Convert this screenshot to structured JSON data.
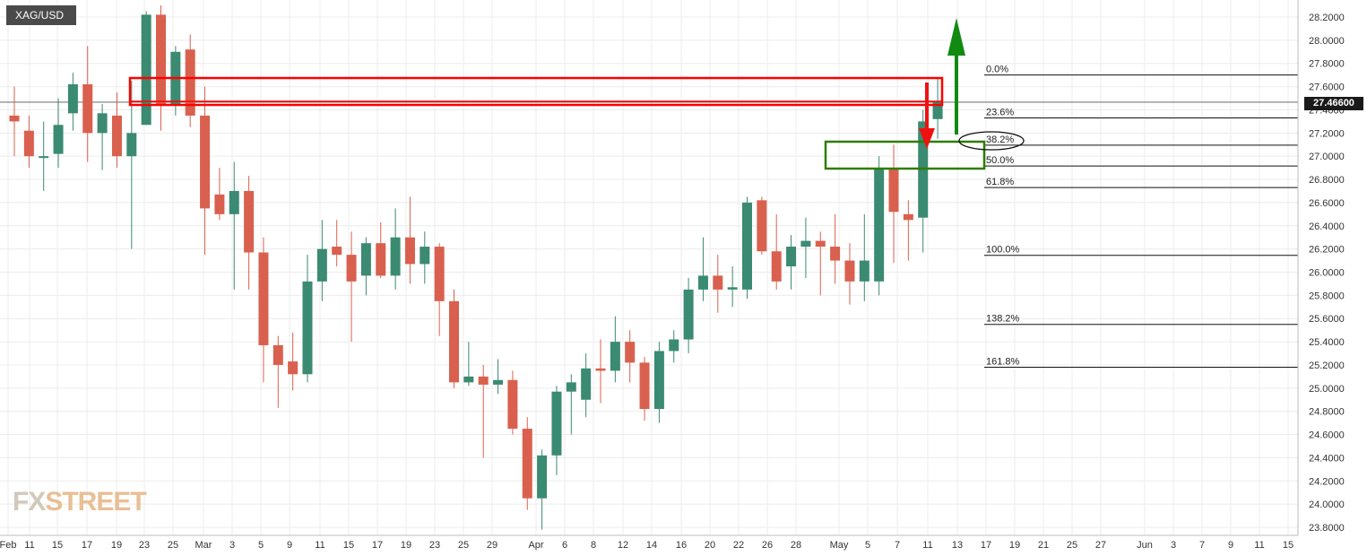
{
  "symbol": "XAG/USD",
  "last_price": "27.46600",
  "watermark": {
    "part1": "FX",
    "part2": "STREET"
  },
  "colors": {
    "up": "#3b8a72",
    "down": "#d9604e",
    "resistance_box": "#ff0000",
    "support_box": "#2e7d00",
    "up_arrow": "#118a11",
    "down_arrow": "#ee1111"
  },
  "chart_data": {
    "type": "candlestick",
    "title": "",
    "xlabel": "",
    "ylabel": "",
    "ylim": [
      23.78,
      28.3
    ],
    "y_ticks": [
      "28.2000",
      "28.0000",
      "27.8000",
      "27.6000",
      "27.4000",
      "27.2000",
      "27.0000",
      "26.8000",
      "26.6000",
      "26.4000",
      "26.2000",
      "26.0000",
      "25.8000",
      "25.6000",
      "25.4000",
      "25.2000",
      "25.0000",
      "24.8000",
      "24.6000",
      "24.4000",
      "24.2000",
      "24.0000",
      "23.8000"
    ],
    "x_ticks": [
      "Feb",
      "11",
      "15",
      "17",
      "19",
      "23",
      "25",
      "Mar",
      "3",
      "5",
      "9",
      "11",
      "15",
      "17",
      "19",
      "23",
      "25",
      "29",
      "Apr",
      "6",
      "8",
      "12",
      "14",
      "16",
      "20",
      "22",
      "26",
      "28",
      "May",
      "5",
      "7",
      "11",
      "13",
      "17",
      "19",
      "21",
      "25",
      "27",
      "Jun",
      "3",
      "7",
      "9",
      "11",
      "15"
    ],
    "grid": true,
    "candles": [
      {
        "date": "Feb 9",
        "o": 27.35,
        "h": 27.6,
        "l": 27.0,
        "c": 27.3
      },
      {
        "date": "Feb 10",
        "o": 27.22,
        "h": 27.35,
        "l": 26.9,
        "c": 27.0
      },
      {
        "date": "Feb 11",
        "o": 27.0,
        "h": 27.3,
        "l": 26.7,
        "c": 27.0
      },
      {
        "date": "Feb 12",
        "o": 27.02,
        "h": 27.5,
        "l": 26.9,
        "c": 27.27
      },
      {
        "date": "Feb 15",
        "o": 27.37,
        "h": 27.72,
        "l": 27.22,
        "c": 27.62
      },
      {
        "date": "Feb 16",
        "o": 27.62,
        "h": 27.95,
        "l": 26.95,
        "c": 27.2
      },
      {
        "date": "Feb 17",
        "o": 27.2,
        "h": 27.45,
        "l": 26.88,
        "c": 27.37
      },
      {
        "date": "Feb 18",
        "o": 27.35,
        "h": 27.55,
        "l": 26.9,
        "c": 27.0
      },
      {
        "date": "Feb 19",
        "o": 27.0,
        "h": 27.65,
        "l": 26.2,
        "c": 27.2
      },
      {
        "date": "Feb 22",
        "o": 27.27,
        "h": 28.25,
        "l": 27.27,
        "c": 28.22
      },
      {
        "date": "Feb 23",
        "o": 28.22,
        "h": 28.3,
        "l": 27.22,
        "c": 27.45
      },
      {
        "date": "Feb 24",
        "o": 27.45,
        "h": 27.95,
        "l": 27.35,
        "c": 27.9
      },
      {
        "date": "Feb 25",
        "o": 27.92,
        "h": 28.05,
        "l": 27.25,
        "c": 27.35
      },
      {
        "date": "Feb 26",
        "o": 27.35,
        "h": 27.6,
        "l": 26.15,
        "c": 26.55
      },
      {
        "date": "Mar 1",
        "o": 26.67,
        "h": 26.9,
        "l": 26.45,
        "c": 26.5
      },
      {
        "date": "Mar 2",
        "o": 26.5,
        "h": 26.95,
        "l": 25.85,
        "c": 26.7
      },
      {
        "date": "Mar 3",
        "o": 26.7,
        "h": 26.83,
        "l": 25.85,
        "c": 26.17
      },
      {
        "date": "Mar 4",
        "o": 26.17,
        "h": 26.3,
        "l": 25.05,
        "c": 25.37
      },
      {
        "date": "Mar 5",
        "o": 25.37,
        "h": 25.45,
        "l": 24.83,
        "c": 25.2
      },
      {
        "date": "Mar 8",
        "o": 25.23,
        "h": 25.48,
        "l": 24.98,
        "c": 25.12
      },
      {
        "date": "Mar 9",
        "o": 25.12,
        "h": 26.15,
        "l": 25.05,
        "c": 25.92
      },
      {
        "date": "Mar 10",
        "o": 25.92,
        "h": 26.45,
        "l": 25.75,
        "c": 26.2
      },
      {
        "date": "Mar 11",
        "o": 26.22,
        "h": 26.45,
        "l": 26.05,
        "c": 26.15
      },
      {
        "date": "Mar 12",
        "o": 26.15,
        "h": 26.35,
        "l": 25.4,
        "c": 25.92
      },
      {
        "date": "Mar 15",
        "o": 25.97,
        "h": 26.3,
        "l": 25.8,
        "c": 26.25
      },
      {
        "date": "Mar 16",
        "o": 26.25,
        "h": 26.43,
        "l": 25.95,
        "c": 25.97
      },
      {
        "date": "Mar 17",
        "o": 25.97,
        "h": 26.55,
        "l": 25.85,
        "c": 26.3
      },
      {
        "date": "Mar 18",
        "o": 26.3,
        "h": 26.65,
        "l": 25.9,
        "c": 26.07
      },
      {
        "date": "Mar 19",
        "o": 26.07,
        "h": 26.35,
        "l": 25.9,
        "c": 26.22
      },
      {
        "date": "Mar 22",
        "o": 26.22,
        "h": 26.25,
        "l": 25.45,
        "c": 25.75
      },
      {
        "date": "Mar 23",
        "o": 25.75,
        "h": 25.85,
        "l": 25.0,
        "c": 25.05
      },
      {
        "date": "Mar 24",
        "o": 25.05,
        "h": 25.4,
        "l": 25.02,
        "c": 25.1
      },
      {
        "date": "Mar 25",
        "o": 25.1,
        "h": 25.2,
        "l": 24.4,
        "c": 25.03
      },
      {
        "date": "Mar 26",
        "o": 25.03,
        "h": 25.25,
        "l": 24.95,
        "c": 25.07
      },
      {
        "date": "Mar 29",
        "o": 25.07,
        "h": 25.15,
        "l": 24.6,
        "c": 24.65
      },
      {
        "date": "Mar 30",
        "o": 24.65,
        "h": 24.75,
        "l": 23.95,
        "c": 24.05
      },
      {
        "date": "Mar 31",
        "o": 24.05,
        "h": 24.47,
        "l": 23.78,
        "c": 24.42
      },
      {
        "date": "Apr 1",
        "o": 24.42,
        "h": 25.02,
        "l": 24.25,
        "c": 24.97
      },
      {
        "date": "Apr 2",
        "o": 24.97,
        "h": 25.12,
        "l": 24.6,
        "c": 25.05
      },
      {
        "date": "Apr 5",
        "o": 24.9,
        "h": 25.3,
        "l": 24.75,
        "c": 25.17
      },
      {
        "date": "Apr 6",
        "o": 25.17,
        "h": 25.42,
        "l": 24.87,
        "c": 25.15
      },
      {
        "date": "Apr 7",
        "o": 25.15,
        "h": 25.62,
        "l": 25.05,
        "c": 25.4
      },
      {
        "date": "Apr 8",
        "o": 25.4,
        "h": 25.5,
        "l": 25.05,
        "c": 25.22
      },
      {
        "date": "Apr 9",
        "o": 25.22,
        "h": 25.27,
        "l": 24.72,
        "c": 24.82
      },
      {
        "date": "Apr 12",
        "o": 24.82,
        "h": 25.4,
        "l": 24.7,
        "c": 25.32
      },
      {
        "date": "Apr 13",
        "o": 25.32,
        "h": 25.5,
        "l": 25.22,
        "c": 25.42
      },
      {
        "date": "Apr 14",
        "o": 25.42,
        "h": 25.95,
        "l": 25.3,
        "c": 25.85
      },
      {
        "date": "Apr 15",
        "o": 25.85,
        "h": 26.3,
        "l": 25.75,
        "c": 25.97
      },
      {
        "date": "Apr 16",
        "o": 25.97,
        "h": 26.15,
        "l": 25.65,
        "c": 25.85
      },
      {
        "date": "Apr 19",
        "o": 25.85,
        "h": 26.05,
        "l": 25.7,
        "c": 25.87
      },
      {
        "date": "Apr 20",
        "o": 25.85,
        "h": 26.65,
        "l": 25.77,
        "c": 26.6
      },
      {
        "date": "Apr 21",
        "o": 26.62,
        "h": 26.65,
        "l": 26.15,
        "c": 26.18
      },
      {
        "date": "Apr 22",
        "o": 26.18,
        "h": 26.5,
        "l": 25.85,
        "c": 25.92
      },
      {
        "date": "Apr 23",
        "o": 26.05,
        "h": 26.32,
        "l": 25.85,
        "c": 26.22
      },
      {
        "date": "Apr 26",
        "o": 26.22,
        "h": 26.47,
        "l": 25.95,
        "c": 26.27
      },
      {
        "date": "Apr 27",
        "o": 26.27,
        "h": 26.35,
        "l": 25.8,
        "c": 26.22
      },
      {
        "date": "Apr 28",
        "o": 26.22,
        "h": 26.5,
        "l": 25.9,
        "c": 26.1
      },
      {
        "date": "Apr 29",
        "o": 26.1,
        "h": 26.25,
        "l": 25.72,
        "c": 25.92
      },
      {
        "date": "Apr 30",
        "o": 25.92,
        "h": 26.5,
        "l": 25.75,
        "c": 26.1
      },
      {
        "date": "May 3",
        "o": 25.92,
        "h": 27.0,
        "l": 25.8,
        "c": 26.9
      },
      {
        "date": "May 4",
        "o": 26.9,
        "h": 27.1,
        "l": 26.08,
        "c": 26.52
      },
      {
        "date": "May 5",
        "o": 26.5,
        "h": 26.62,
        "l": 26.1,
        "c": 26.45
      },
      {
        "date": "May 6",
        "o": 26.47,
        "h": 27.4,
        "l": 26.17,
        "c": 27.3
      },
      {
        "date": "May 7",
        "o": 27.32,
        "h": 27.67,
        "l": 27.15,
        "c": 27.47
      }
    ],
    "fibonacci": [
      {
        "label": "0.0%",
        "price": 27.7
      },
      {
        "label": "23.6%",
        "price": 27.33
      },
      {
        "label": "38.2%",
        "price": 27.095
      },
      {
        "label": "50.0%",
        "price": 26.915
      },
      {
        "label": "61.8%",
        "price": 26.73
      },
      {
        "label": "100.0%",
        "price": 26.145
      },
      {
        "label": "138.2%",
        "price": 25.55
      },
      {
        "label": "161.8%",
        "price": 25.18
      }
    ],
    "current_price": 27.466
  }
}
